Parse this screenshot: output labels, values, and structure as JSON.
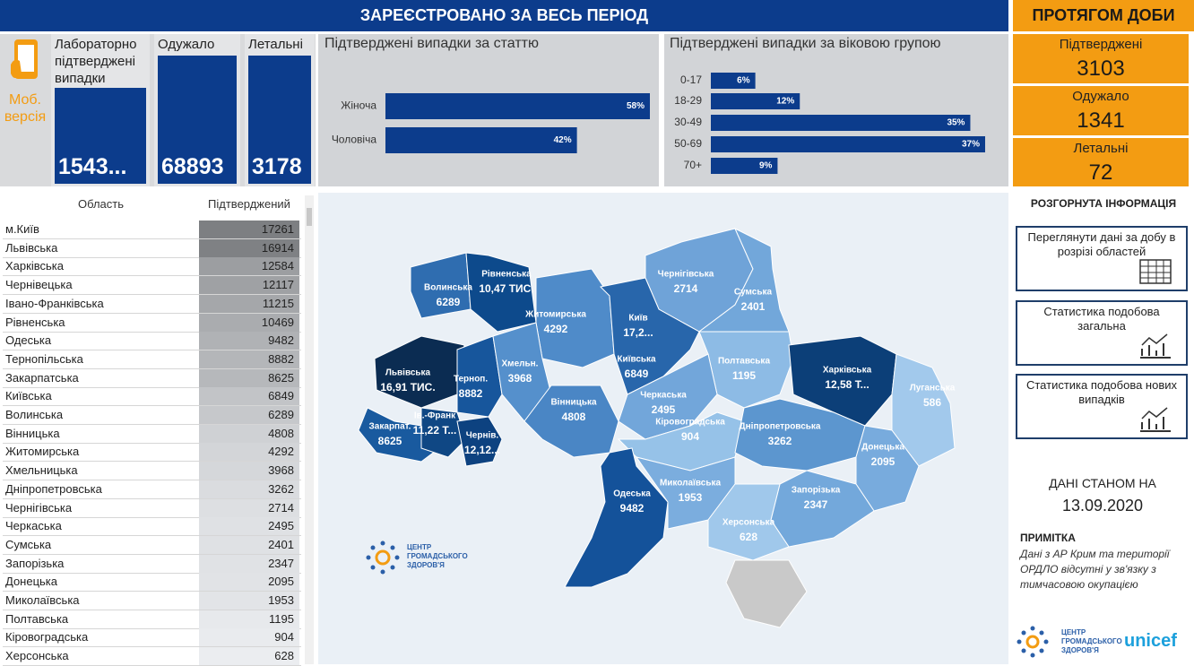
{
  "header": {
    "title": "ЗАРЕЄСТРОВАНО ЗА ВЕСЬ ПЕРІОД",
    "daily_title": "ПРОТЯГОМ ДОБИ"
  },
  "mobile": {
    "label": "Моб. версія"
  },
  "totals": [
    {
      "label": "Лабораторно підтверджені випадки",
      "value": "1543..."
    },
    {
      "label": "Одужало",
      "value": "68893"
    },
    {
      "label": "Летальні",
      "value": "3178"
    }
  ],
  "sex_chart": {
    "title": "Підтверджені випадки за статтю",
    "categories": [
      "Жіноча",
      "Чоловіча"
    ],
    "values": [
      58,
      42
    ],
    "value_labels": [
      "58%",
      "42%"
    ],
    "color": "#0c3c8c"
  },
  "age_chart": {
    "title": "Підтверджені випадки за віковою групою",
    "categories": [
      "0-17",
      "18-29",
      "30-49",
      "50-69",
      "70+"
    ],
    "values": [
      6,
      12,
      35,
      37,
      9
    ],
    "value_labels": [
      "6%",
      "12%",
      "35%",
      "37%",
      "9%"
    ],
    "color": "#0c3c8c"
  },
  "daily": [
    {
      "label": "Підтверджені",
      "value": 3103
    },
    {
      "label": "Одужало",
      "value": 1341
    },
    {
      "label": "Летальні",
      "value": 72
    }
  ],
  "table": {
    "columns": [
      "Область",
      "Підтверджений"
    ],
    "rows": [
      [
        "м.Київ",
        17261
      ],
      [
        "Львівська",
        16914
      ],
      [
        "Харківська",
        12584
      ],
      [
        "Чернівецька",
        12117
      ],
      [
        "Івано-Франківська",
        11215
      ],
      [
        "Рівненська",
        10469
      ],
      [
        "Одеська",
        9482
      ],
      [
        "Тернопільська",
        8882
      ],
      [
        "Закарпатська",
        8625
      ],
      [
        "Київська",
        6849
      ],
      [
        "Волинська",
        6289
      ],
      [
        "Вінницька",
        4808
      ],
      [
        "Житомирська",
        4292
      ],
      [
        "Хмельницька",
        3968
      ],
      [
        "Дніпропетровська",
        3262
      ],
      [
        "Чернігівська",
        2714
      ],
      [
        "Черкаська",
        2495
      ],
      [
        "Сумська",
        2401
      ],
      [
        "Запорізька",
        2347
      ],
      [
        "Донецька",
        2095
      ],
      [
        "Миколаївська",
        1953
      ],
      [
        "Полтавська",
        1195
      ],
      [
        "Кіровоградська",
        904
      ],
      [
        "Херсонська",
        628
      ]
    ]
  },
  "map": {
    "regions": [
      {
        "name": "Волинська",
        "value": "6289",
        "color": "#2f6db0"
      },
      {
        "name": "Рівненська",
        "value": "10,47 ТИС.",
        "color": "#0d4a8c"
      },
      {
        "name": "Житомирська",
        "value": "4292",
        "color": "#4f8bc9"
      },
      {
        "name": "Київ",
        "value": "17,2...",
        "color": "#0a2f5a"
      },
      {
        "name": "Чернігівська",
        "value": "2714",
        "color": "#6fa3d8"
      },
      {
        "name": "Сумська",
        "value": "2401",
        "color": "#72a7da"
      },
      {
        "name": "Львівська",
        "value": "16,91 ТИС.",
        "color": "#0b2c52"
      },
      {
        "name": "Терноп.",
        "value": "8882",
        "color": "#17569c"
      },
      {
        "name": "Хмельн.",
        "value": "3968",
        "color": "#5590cc"
      },
      {
        "name": "Київська",
        "value": "6849",
        "color": "#2866ab"
      },
      {
        "name": "Полтавська",
        "value": "1195",
        "color": "#8dbbe5"
      },
      {
        "name": "Харківська",
        "value": "12,58 Т...",
        "color": "#0c3f78"
      },
      {
        "name": "Луганська",
        "value": "586",
        "color": "#a2c9ec"
      },
      {
        "name": "Вінницька",
        "value": "4808",
        "color": "#4a86c5"
      },
      {
        "name": "Черкаська",
        "value": "2495",
        "color": "#72a6da"
      },
      {
        "name": "Закарпат.",
        "value": "8625",
        "color": "#195a9f"
      },
      {
        "name": "Ів.-Франк",
        "value": "11,22 Т...",
        "color": "#0f4784"
      },
      {
        "name": "Чернів.",
        "value": "12,12...",
        "color": "#0d4280"
      },
      {
        "name": "Кіровоградська",
        "value": "904",
        "color": "#96c2e8"
      },
      {
        "name": "Дніпропетровська",
        "value": "3262",
        "color": "#5c96cf"
      },
      {
        "name": "Донецька",
        "value": "2095",
        "color": "#78abdd"
      },
      {
        "name": "Одеська",
        "value": "9482",
        "color": "#14529a"
      },
      {
        "name": "Миколаївська",
        "value": "1953",
        "color": "#7badde"
      },
      {
        "name": "Запорізька",
        "value": "2347",
        "color": "#73a8db"
      },
      {
        "name": "Херсонська",
        "value": "628",
        "color": "#a0c8eb"
      }
    ],
    "logo": "ЦЕНТР ГРОМАДСЬКОГО ЗДОРОВ'Я"
  },
  "side": {
    "title": "РОЗГОРНУТА ІНФОРМАЦІЯ",
    "buttons": [
      "Переглянути дані за добу в розрізі областей",
      "Статистика подобова загальна",
      "Статистика подобова нових випадків"
    ],
    "date_label": "ДАНІ СТАНОМ НА",
    "date": "13.09.2020",
    "note_title": "ПРИМІТКА",
    "note": "Дані з АР Крим та території ОРДЛО відсутні у зв'язку з тимчасовою окупацією",
    "unicef": "unicef"
  }
}
